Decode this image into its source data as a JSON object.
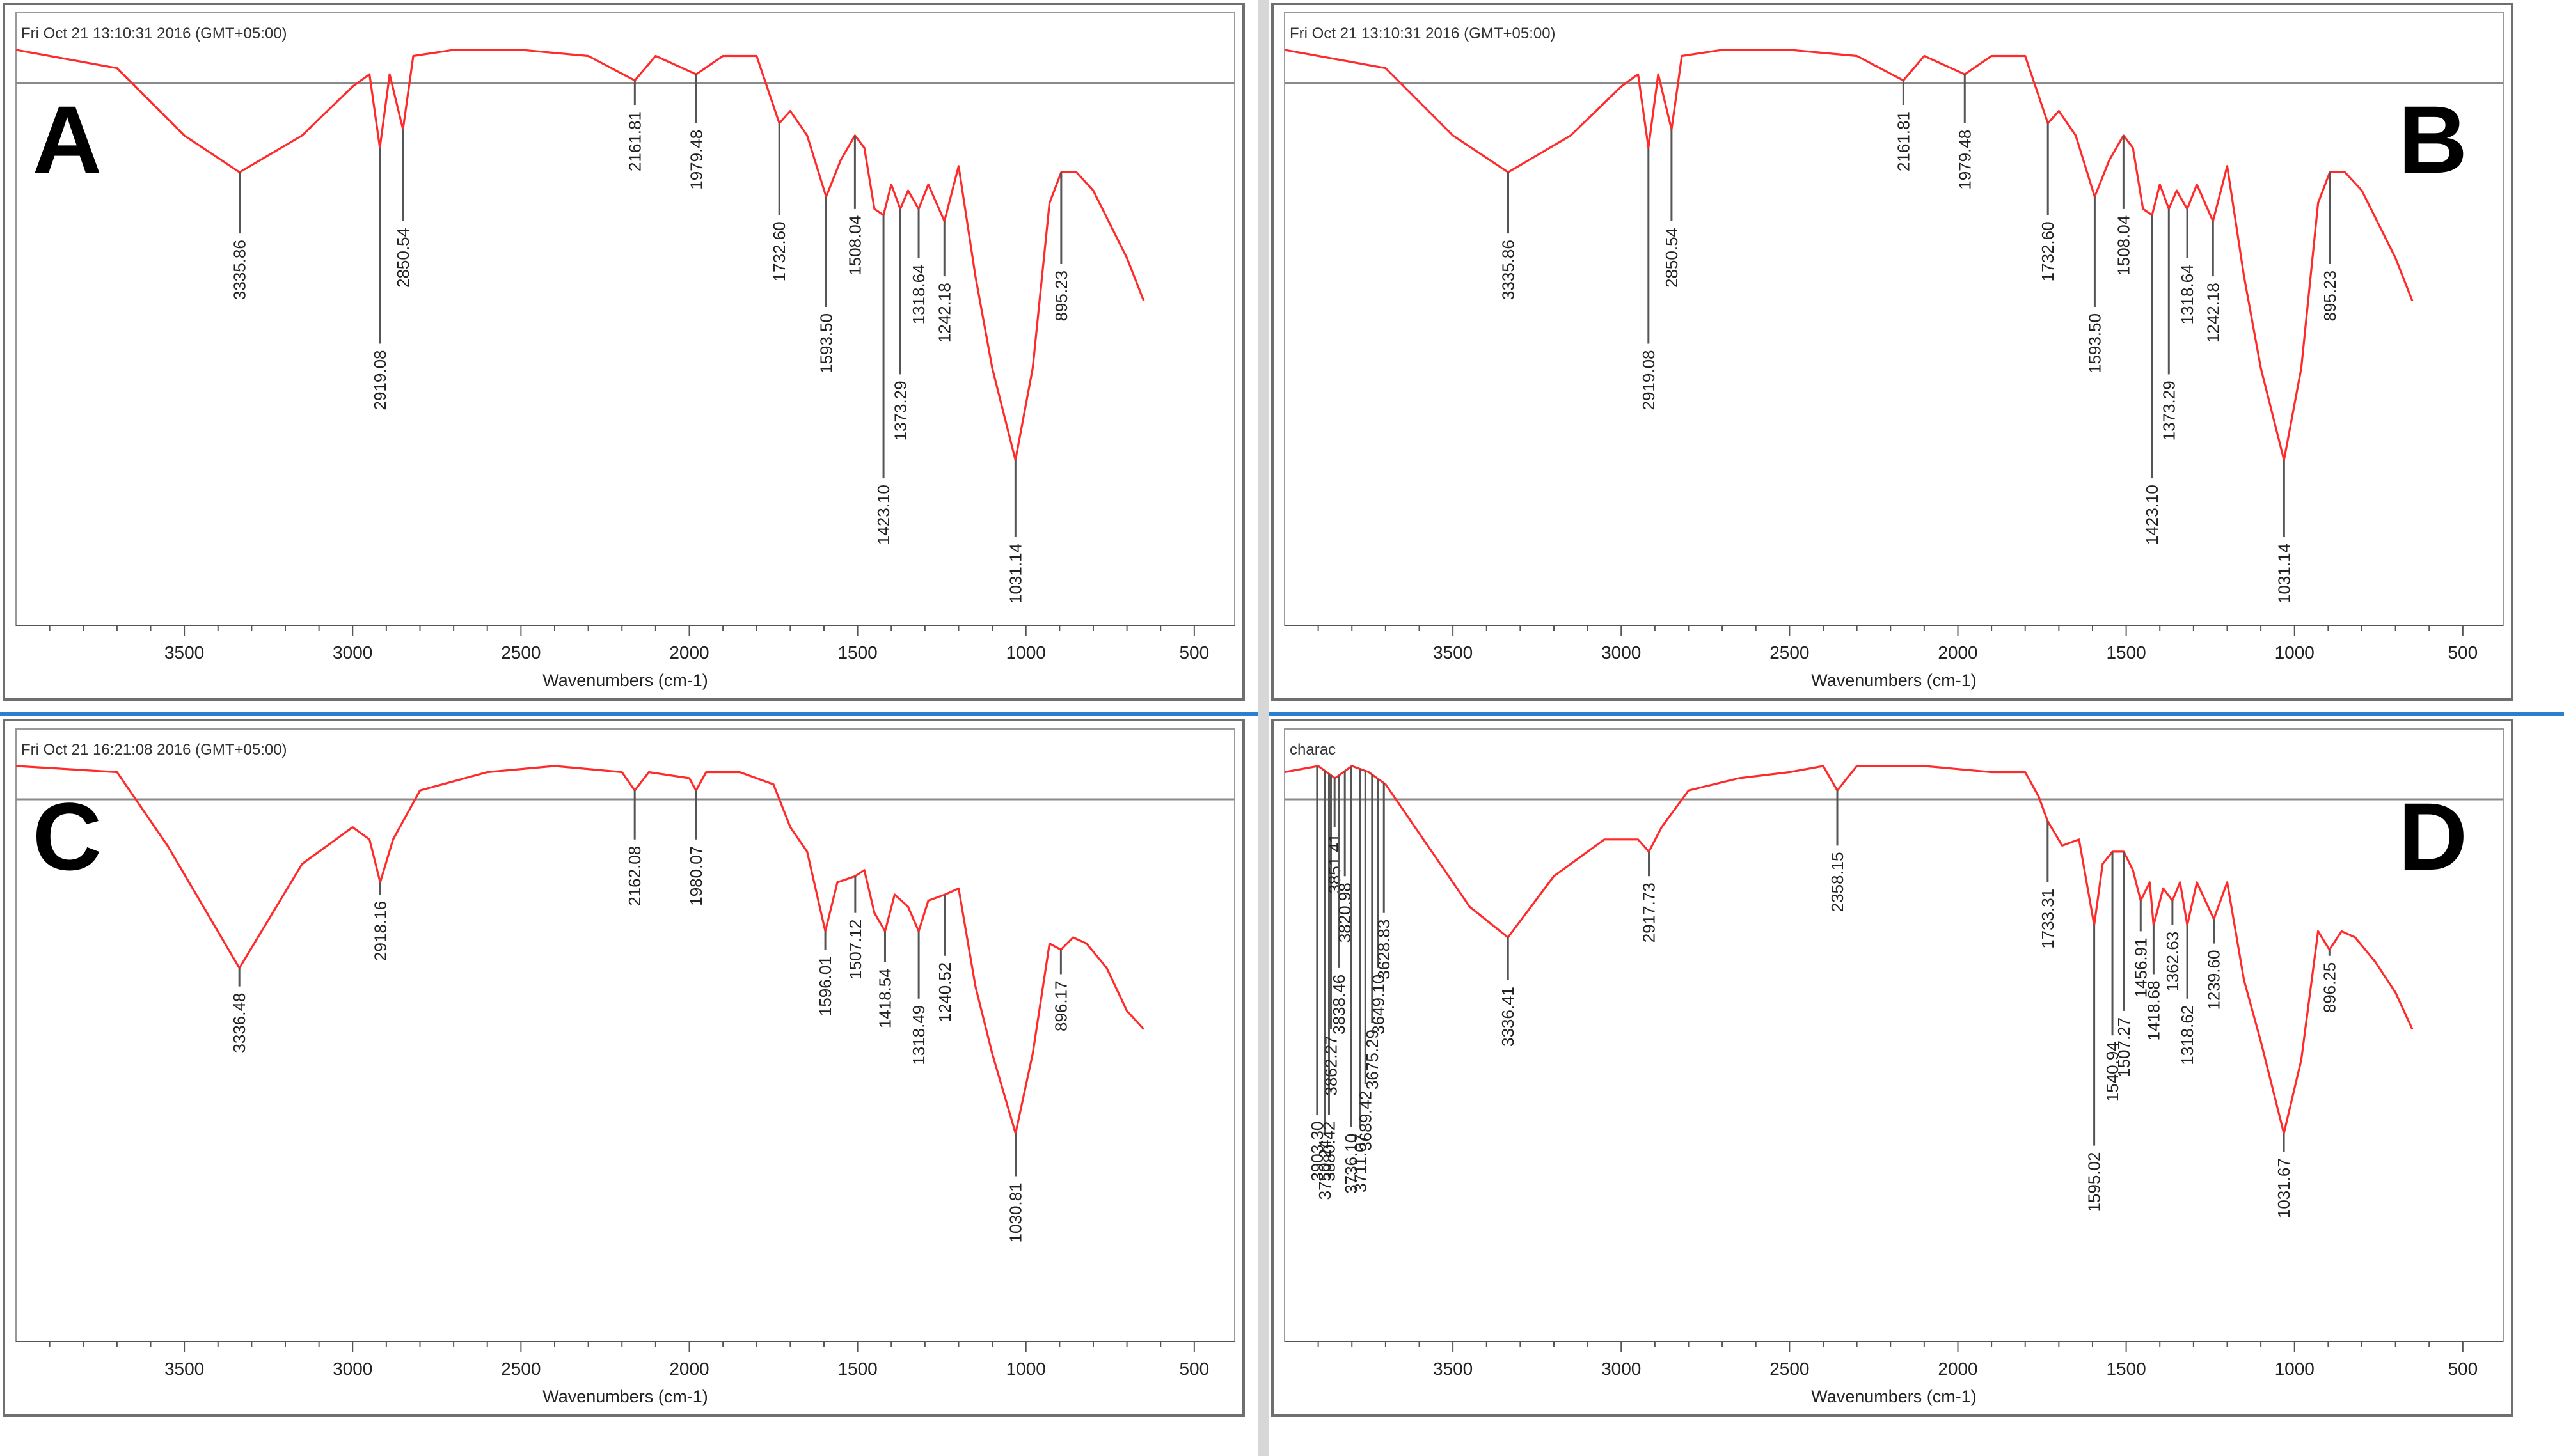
{
  "xlabel": "Wavenumbers (cm-1)",
  "chart_data": [
    {
      "type": "line",
      "panel_label": "A",
      "header": "Fri Oct 21 13:10:31 2016 (GMT+05:00)",
      "title": "",
      "xlabel": "Wavenumbers (cm-1)",
      "ylabel": "",
      "x_reversed": true,
      "xlim": [
        4000,
        380
      ],
      "x_ticks": [
        3500,
        3000,
        2500,
        2000,
        1500,
        1000,
        500
      ],
      "ylim": [
        0.06,
        1.05
      ],
      "grid": false,
      "peak_labels": [
        {
          "label": "3335.86",
          "x": 3335.86,
          "y": 0.7
        },
        {
          "label": "2919.08",
          "x": 2919.08,
          "y": 0.52
        },
        {
          "label": "2850.54",
          "x": 2850.54,
          "y": 0.72
        },
        {
          "label": "2161.81",
          "x": 2161.81,
          "y": 0.91
        },
        {
          "label": "1979.48",
          "x": 1979.48,
          "y": 0.88
        },
        {
          "label": "1732.60",
          "x": 1732.6,
          "y": 0.73
        },
        {
          "label": "1593.50",
          "x": 1593.5,
          "y": 0.58
        },
        {
          "label": "1508.04",
          "x": 1508.04,
          "y": 0.74
        },
        {
          "label": "1423.10",
          "x": 1423.1,
          "y": 0.3
        },
        {
          "label": "1373.29",
          "x": 1373.29,
          "y": 0.47
        },
        {
          "label": "1318.64",
          "x": 1318.64,
          "y": 0.66
        },
        {
          "label": "1242.18",
          "x": 1242.18,
          "y": 0.63
        },
        {
          "label": "1031.14",
          "x": 1031.14,
          "y": 0.16
        },
        {
          "label": "895.23",
          "x": 895.23,
          "y": 0.65
        }
      ],
      "series": [
        {
          "x": [
            4000,
            3700,
            3500,
            3335.86,
            3150,
            3000,
            2950,
            2919.08,
            2890,
            2850.54,
            2820,
            2700,
            2500,
            2300,
            2161.81,
            2100,
            1979.48,
            1900,
            1800,
            1732.6,
            1700,
            1650,
            1593.5,
            1550,
            1508.04,
            1480,
            1450,
            1423.1,
            1400,
            1373.29,
            1350,
            1318.64,
            1290,
            1242.18,
            1200,
            1150,
            1100,
            1031.14,
            980,
            930,
            895.23,
            850,
            800,
            700,
            650
          ],
          "y": [
            1.0,
            0.97,
            0.86,
            0.8,
            0.86,
            0.94,
            0.96,
            0.84,
            0.96,
            0.87,
            0.99,
            1.0,
            1.0,
            0.99,
            0.95,
            0.99,
            0.96,
            0.99,
            0.99,
            0.88,
            0.9,
            0.86,
            0.76,
            0.82,
            0.86,
            0.84,
            0.74,
            0.73,
            0.78,
            0.74,
            0.77,
            0.74,
            0.78,
            0.72,
            0.81,
            0.63,
            0.48,
            0.33,
            0.48,
            0.75,
            0.8,
            0.8,
            0.77,
            0.66,
            0.59
          ]
        }
      ]
    },
    {
      "type": "line",
      "panel_label": "B",
      "header": "Fri Oct 21 13:10:31 2016 (GMT+05:00)",
      "title": "",
      "xlabel": "Wavenumbers (cm-1)",
      "ylabel": "",
      "x_reversed": true,
      "xlim": [
        4000,
        380
      ],
      "x_ticks": [
        3500,
        3000,
        2500,
        2000,
        1500,
        1000,
        500
      ],
      "ylim": [
        0.06,
        1.05
      ],
      "grid": false,
      "peak_labels": [
        {
          "label": "3335.86",
          "x": 3335.86,
          "y": 0.7
        },
        {
          "label": "2919.08",
          "x": 2919.08,
          "y": 0.52
        },
        {
          "label": "2850.54",
          "x": 2850.54,
          "y": 0.72
        },
        {
          "label": "2161.81",
          "x": 2161.81,
          "y": 0.91
        },
        {
          "label": "1979.48",
          "x": 1979.48,
          "y": 0.88
        },
        {
          "label": "1732.60",
          "x": 1732.6,
          "y": 0.73
        },
        {
          "label": "1593.50",
          "x": 1593.5,
          "y": 0.58
        },
        {
          "label": "1508.04",
          "x": 1508.04,
          "y": 0.74
        },
        {
          "label": "1423.10",
          "x": 1423.1,
          "y": 0.3
        },
        {
          "label": "1373.29",
          "x": 1373.29,
          "y": 0.47
        },
        {
          "label": "1318.64",
          "x": 1318.64,
          "y": 0.66
        },
        {
          "label": "1242.18",
          "x": 1242.18,
          "y": 0.63
        },
        {
          "label": "1031.14",
          "x": 1031.14,
          "y": 0.16
        },
        {
          "label": "895.23",
          "x": 895.23,
          "y": 0.65
        }
      ],
      "series": [
        {
          "x": [
            4000,
            3700,
            3500,
            3335.86,
            3150,
            3000,
            2950,
            2919.08,
            2890,
            2850.54,
            2820,
            2700,
            2500,
            2300,
            2161.81,
            2100,
            1979.48,
            1900,
            1800,
            1732.6,
            1700,
            1650,
            1593.5,
            1550,
            1508.04,
            1480,
            1450,
            1423.1,
            1400,
            1373.29,
            1350,
            1318.64,
            1290,
            1242.18,
            1200,
            1150,
            1100,
            1031.14,
            980,
            930,
            895.23,
            850,
            800,
            700,
            650
          ],
          "y": [
            1.0,
            0.97,
            0.86,
            0.8,
            0.86,
            0.94,
            0.96,
            0.84,
            0.96,
            0.87,
            0.99,
            1.0,
            1.0,
            0.99,
            0.95,
            0.99,
            0.96,
            0.99,
            0.99,
            0.88,
            0.9,
            0.86,
            0.76,
            0.82,
            0.86,
            0.84,
            0.74,
            0.73,
            0.78,
            0.74,
            0.77,
            0.74,
            0.78,
            0.72,
            0.81,
            0.63,
            0.48,
            0.33,
            0.48,
            0.75,
            0.8,
            0.8,
            0.77,
            0.66,
            0.59
          ]
        }
      ]
    },
    {
      "type": "line",
      "panel_label": "C",
      "header": "Fri Oct 21 16:21:08 2016 (GMT+05:00)",
      "title": "",
      "xlabel": "Wavenumbers (cm-1)",
      "ylabel": "",
      "x_reversed": true,
      "xlim": [
        4000,
        380
      ],
      "x_ticks": [
        3500,
        3000,
        2500,
        2000,
        1500,
        1000,
        500
      ],
      "ylim": [
        0.06,
        1.05
      ],
      "grid": false,
      "peak_labels": [
        {
          "label": "3336.48",
          "x": 3336.48,
          "y": 0.64
        },
        {
          "label": "2918.16",
          "x": 2918.16,
          "y": 0.79
        },
        {
          "label": "2162.08",
          "x": 2162.08,
          "y": 0.88
        },
        {
          "label": "1980.07",
          "x": 1980.07,
          "y": 0.88
        },
        {
          "label": "1596.01",
          "x": 1596.01,
          "y": 0.7
        },
        {
          "label": "1507.12",
          "x": 1507.12,
          "y": 0.76
        },
        {
          "label": "1418.54",
          "x": 1418.54,
          "y": 0.68
        },
        {
          "label": "1318.49",
          "x": 1318.49,
          "y": 0.62
        },
        {
          "label": "1240.52",
          "x": 1240.52,
          "y": 0.69
        },
        {
          "label": "1030.81",
          "x": 1030.81,
          "y": 0.33
        },
        {
          "label": "896.17",
          "x": 896.17,
          "y": 0.66
        }
      ],
      "series": [
        {
          "x": [
            4000,
            3700,
            3550,
            3336.48,
            3150,
            3000,
            2950,
            2918.16,
            2880,
            2800,
            2600,
            2400,
            2200,
            2162.08,
            2120,
            2000,
            1980.07,
            1950,
            1850,
            1750,
            1700,
            1650,
            1596.01,
            1560,
            1507.12,
            1480,
            1450,
            1418.54,
            1390,
            1350,
            1318.49,
            1290,
            1240.52,
            1200,
            1150,
            1100,
            1030.81,
            980,
            930,
            896.17,
            860,
            820,
            760,
            700,
            650
          ],
          "y": [
            1.0,
            0.99,
            0.87,
            0.67,
            0.84,
            0.9,
            0.88,
            0.81,
            0.88,
            0.96,
            0.99,
            1.0,
            0.99,
            0.96,
            0.99,
            0.98,
            0.96,
            0.99,
            0.99,
            0.97,
            0.9,
            0.86,
            0.73,
            0.81,
            0.82,
            0.83,
            0.76,
            0.73,
            0.79,
            0.77,
            0.73,
            0.78,
            0.79,
            0.8,
            0.64,
            0.53,
            0.4,
            0.53,
            0.71,
            0.7,
            0.72,
            0.71,
            0.67,
            0.6,
            0.57
          ]
        }
      ]
    },
    {
      "type": "line",
      "panel_label": "D",
      "header": "charac",
      "title": "",
      "xlabel": "Wavenumbers (cm-1)",
      "ylabel": "",
      "x_reversed": true,
      "xlim": [
        4000,
        380
      ],
      "x_ticks": [
        3500,
        3000,
        2500,
        2000,
        1500,
        1000,
        500
      ],
      "ylim": [
        0.06,
        1.05
      ],
      "grid": false,
      "peak_labels": [
        {
          "label": "3903.30",
          "x": 3903.3,
          "y": 0.43
        },
        {
          "label": "3750.24",
          "x": 3880,
          "y": 0.4
        },
        {
          "label": "3880.42",
          "x": 3868,
          "y": 0.43
        },
        {
          "label": "3862.27",
          "x": 3862.27,
          "y": 0.57
        },
        {
          "label": "3851.41",
          "x": 3851.41,
          "y": 0.9
        },
        {
          "label": "3838.46",
          "x": 3838.46,
          "y": 0.67
        },
        {
          "label": "3820.98",
          "x": 3820.98,
          "y": 0.82
        },
        {
          "label": "3736.10",
          "x": 3802,
          "y": 0.41
        },
        {
          "label": "3711.07",
          "x": 3775,
          "y": 0.41
        },
        {
          "label": "3689.42",
          "x": 3760,
          "y": 0.48
        },
        {
          "label": "3675.29",
          "x": 3740,
          "y": 0.58
        },
        {
          "label": "3649.10",
          "x": 3722,
          "y": 0.67
        },
        {
          "label": "3628.83",
          "x": 3705,
          "y": 0.76
        },
        {
          "label": "3336.41",
          "x": 3336.41,
          "y": 0.65
        },
        {
          "label": "2917.73",
          "x": 2917.73,
          "y": 0.82
        },
        {
          "label": "2358.15",
          "x": 2358.15,
          "y": 0.87
        },
        {
          "label": "1733.31",
          "x": 1733.31,
          "y": 0.81
        },
        {
          "label": "1595.02",
          "x": 1595.02,
          "y": 0.38
        },
        {
          "label": "1540.94",
          "x": 1540.94,
          "y": 0.56
        },
        {
          "label": "1507.27",
          "x": 1507.27,
          "y": 0.6
        },
        {
          "label": "1456.91",
          "x": 1456.91,
          "y": 0.73
        },
        {
          "label": "1418.68",
          "x": 1418.68,
          "y": 0.66
        },
        {
          "label": "1362.63",
          "x": 1362.63,
          "y": 0.74
        },
        {
          "label": "1318.62",
          "x": 1318.62,
          "y": 0.62
        },
        {
          "label": "1239.60",
          "x": 1239.6,
          "y": 0.71
        },
        {
          "label": "1031.67",
          "x": 1031.67,
          "y": 0.37
        },
        {
          "label": "896.25",
          "x": 896.25,
          "y": 0.69
        }
      ],
      "series": [
        {
          "x": [
            4000,
            3900,
            3850,
            3800,
            3750,
            3700,
            3650,
            3550,
            3450,
            3336.41,
            3200,
            3050,
            2950,
            2917.73,
            2880,
            2800,
            2650,
            2500,
            2400,
            2358.15,
            2300,
            2100,
            1900,
            1800,
            1760,
            1733.31,
            1690,
            1640,
            1595.02,
            1570,
            1540.94,
            1507.27,
            1480,
            1456.91,
            1430,
            1418.68,
            1390,
            1362.63,
            1340,
            1318.62,
            1290,
            1239.6,
            1200,
            1150,
            1100,
            1031.67,
            980,
            930,
            896.25,
            860,
            820,
            760,
            700,
            650
          ],
          "y": [
            0.99,
            1.0,
            0.98,
            1.0,
            0.99,
            0.97,
            0.93,
            0.85,
            0.77,
            0.72,
            0.82,
            0.88,
            0.88,
            0.86,
            0.9,
            0.96,
            0.98,
            0.99,
            1.0,
            0.96,
            1.0,
            1.0,
            0.99,
            0.99,
            0.95,
            0.91,
            0.87,
            0.88,
            0.74,
            0.84,
            0.86,
            0.86,
            0.83,
            0.78,
            0.81,
            0.74,
            0.8,
            0.78,
            0.81,
            0.74,
            0.81,
            0.75,
            0.81,
            0.65,
            0.55,
            0.4,
            0.52,
            0.73,
            0.7,
            0.73,
            0.72,
            0.68,
            0.63,
            0.57
          ]
        }
      ]
    }
  ]
}
